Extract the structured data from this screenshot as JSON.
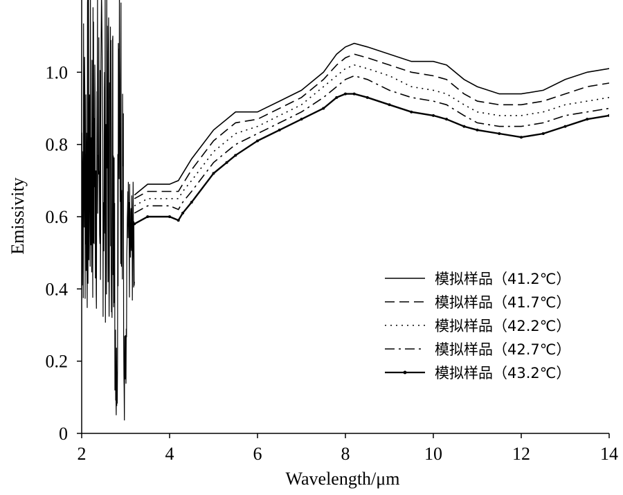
{
  "chart_data": {
    "type": "line",
    "title": "",
    "xlabel": "Wavelength/μm",
    "ylabel": "Emissivity",
    "xlim": [
      2,
      14
    ],
    "ylim": [
      0,
      1.2
    ],
    "x_ticks": [
      2,
      4,
      6,
      8,
      10,
      12,
      14
    ],
    "y_ticks": [
      0,
      0.2,
      0.4,
      0.6,
      0.8,
      1.0
    ],
    "y_tick_labels": [
      "0",
      "0.2",
      "0.4",
      "0.6",
      "0.8",
      "1.0"
    ],
    "grid": false,
    "legend_position": "bottom-right",
    "x": [
      3.2,
      3.5,
      4.0,
      4.2,
      4.3,
      4.5,
      5.0,
      5.3,
      5.5,
      6.0,
      6.5,
      7.0,
      7.5,
      7.8,
      8.0,
      8.2,
      8.5,
      9.0,
      9.5,
      10.0,
      10.3,
      10.7,
      11.0,
      11.5,
      12.0,
      12.5,
      13.0,
      13.5,
      14.0
    ],
    "series": [
      {
        "name": "模拟样品（41.2℃）",
        "style": "solid",
        "values": [
          0.66,
          0.69,
          0.69,
          0.7,
          0.72,
          0.76,
          0.84,
          0.87,
          0.89,
          0.89,
          0.92,
          0.95,
          1.0,
          1.05,
          1.07,
          1.08,
          1.07,
          1.05,
          1.03,
          1.03,
          1.02,
          0.98,
          0.96,
          0.94,
          0.94,
          0.95,
          0.98,
          1.0,
          1.01
        ]
      },
      {
        "name": "模拟样品（41.7℃）",
        "style": "dashed",
        "values": [
          0.65,
          0.67,
          0.67,
          0.67,
          0.69,
          0.73,
          0.81,
          0.84,
          0.86,
          0.87,
          0.9,
          0.93,
          0.98,
          1.02,
          1.04,
          1.05,
          1.04,
          1.02,
          1.0,
          0.99,
          0.98,
          0.94,
          0.92,
          0.91,
          0.91,
          0.92,
          0.94,
          0.96,
          0.97
        ]
      },
      {
        "name": "模拟样品（42.2℃）",
        "style": "dotted",
        "values": [
          0.63,
          0.65,
          0.65,
          0.65,
          0.67,
          0.7,
          0.78,
          0.81,
          0.83,
          0.85,
          0.88,
          0.91,
          0.96,
          0.99,
          1.01,
          1.02,
          1.01,
          0.99,
          0.96,
          0.95,
          0.94,
          0.91,
          0.89,
          0.88,
          0.88,
          0.89,
          0.91,
          0.92,
          0.93
        ]
      },
      {
        "name": "模拟样品（42.7℃）",
        "style": "dashdot",
        "values": [
          0.61,
          0.63,
          0.63,
          0.62,
          0.64,
          0.67,
          0.75,
          0.78,
          0.8,
          0.83,
          0.86,
          0.89,
          0.93,
          0.96,
          0.98,
          0.99,
          0.98,
          0.95,
          0.93,
          0.92,
          0.91,
          0.88,
          0.86,
          0.85,
          0.85,
          0.86,
          0.88,
          0.89,
          0.9
        ]
      },
      {
        "name": "模拟样品（43.2℃）",
        "style": "solid-marker",
        "values": [
          0.58,
          0.6,
          0.6,
          0.59,
          0.61,
          0.64,
          0.72,
          0.75,
          0.77,
          0.81,
          0.84,
          0.87,
          0.9,
          0.93,
          0.94,
          0.94,
          0.93,
          0.91,
          0.89,
          0.88,
          0.87,
          0.85,
          0.84,
          0.83,
          0.82,
          0.83,
          0.85,
          0.87,
          0.88
        ]
      }
    ]
  }
}
